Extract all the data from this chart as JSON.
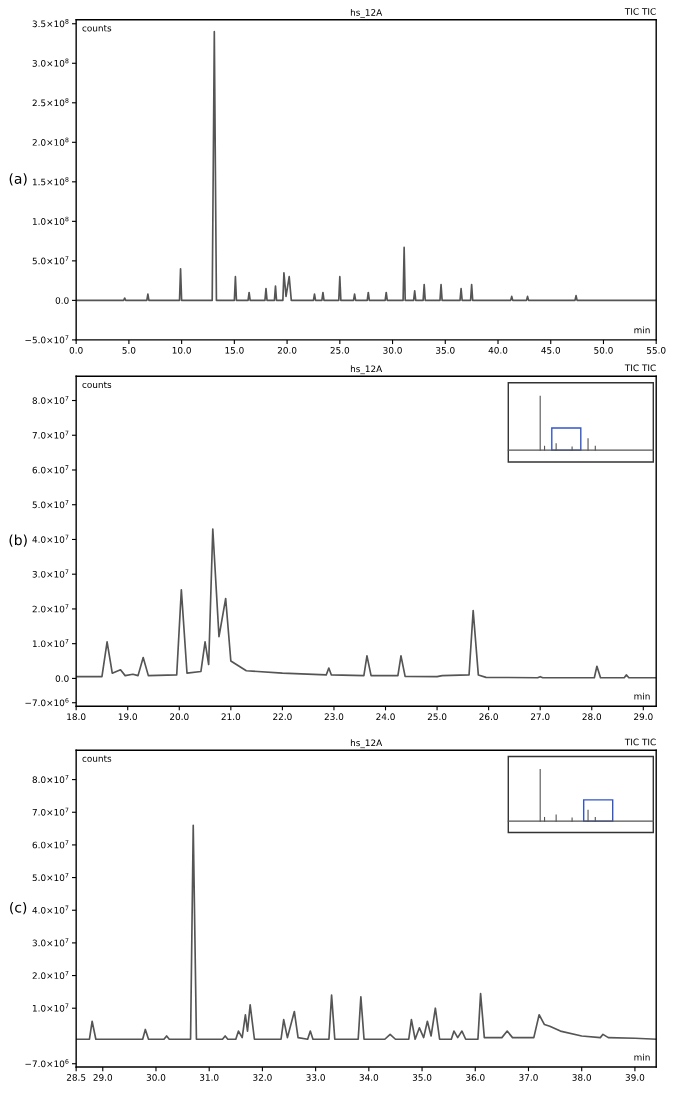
{
  "chart_data": [
    {
      "type": "line",
      "title": "hs_12A",
      "ylabel": "counts",
      "xlabel": "min",
      "annotations": [
        "(a)",
        "TIC TIC"
      ],
      "series": [
        {
          "color": "#555555",
          "x": [
            0,
            4.5,
            4.6,
            4.7,
            6.7,
            6.8,
            6.9,
            9.8,
            9.9,
            10.0,
            12.9,
            13.1,
            13.3,
            15.0,
            15.1,
            15.2,
            16.3,
            16.4,
            16.5,
            17.9,
            18.0,
            18.1,
            18.8,
            18.9,
            19.0,
            19.6,
            19.7,
            19.9,
            20.2,
            20.4,
            22.5,
            22.6,
            22.7,
            23.3,
            23.4,
            23.5,
            24.9,
            25.0,
            25.1,
            26.3,
            26.4,
            26.5,
            27.6,
            27.7,
            27.8,
            29.3,
            29.4,
            29.5,
            31.0,
            31.1,
            31.2,
            32.0,
            32.1,
            32.2,
            32.9,
            33.0,
            33.1,
            34.5,
            34.6,
            34.7,
            36.4,
            36.5,
            36.6,
            37.4,
            37.5,
            37.6,
            41.2,
            41.3,
            41.4,
            42.7,
            42.8,
            42.9,
            47.3,
            47.4,
            47.5,
            55
          ],
          "values": [
            0,
            0,
            3000000,
            0,
            0,
            8000000,
            0,
            0,
            40000000,
            0,
            0,
            340000000,
            0,
            0,
            30000000,
            0,
            0,
            10000000,
            0,
            0,
            15000000,
            0,
            0,
            18000000,
            0,
            0,
            35000000,
            5000000,
            30000000,
            0,
            0,
            8000000,
            0,
            0,
            10000000,
            0,
            0,
            30000000,
            0,
            0,
            8000000,
            0,
            0,
            10000000,
            0,
            0,
            10000000,
            0,
            0,
            67000000,
            0,
            0,
            12000000,
            0,
            0,
            20000000,
            0,
            0,
            20000000,
            0,
            0,
            15000000,
            0,
            0,
            20000000,
            0,
            0,
            5000000,
            0,
            0,
            5000000,
            0,
            0,
            6000000,
            0,
            0
          ]
        }
      ],
      "xlim": [
        0,
        55
      ],
      "ylim": [
        -50000000,
        355000000
      ],
      "xticks": [
        {
          "value": 0,
          "label": "0.0"
        },
        {
          "value": 5,
          "label": "5.0"
        },
        {
          "value": 10,
          "label": "10.0"
        },
        {
          "value": 15,
          "label": "15.0"
        },
        {
          "value": 20,
          "label": "20.0"
        },
        {
          "value": 25,
          "label": "25.0"
        },
        {
          "value": 30,
          "label": "30.0"
        },
        {
          "value": 35,
          "label": "35.0"
        },
        {
          "value": 40,
          "label": "40.0"
        },
        {
          "value": 45,
          "label": "45.0"
        },
        {
          "value": 50,
          "label": "50.0"
        },
        {
          "value": 55,
          "label": "55.0"
        }
      ],
      "yticks": [
        {
          "value": -50000000,
          "label": "−5.0×10$^{7}$"
        },
        {
          "value": 0,
          "label": "0.0"
        },
        {
          "value": 50000000,
          "label": "5.0×10$^{7}$"
        },
        {
          "value": 100000000,
          "label": "1.0×10$^{8}$"
        },
        {
          "value": 150000000,
          "label": "1.5×10$^{8}$"
        },
        {
          "value": 200000000,
          "label": "2.0×10$^{8}$"
        },
        {
          "value": 250000000,
          "label": "2.5×10$^{8}$"
        },
        {
          "value": 300000000,
          "label": "3.0×10$^{8}$"
        },
        {
          "value": 350000000,
          "label": "3.5×10$^{8}$"
        }
      ]
    },
    {
      "type": "line",
      "title": "hs_12A",
      "ylabel": "counts",
      "xlabel": "min",
      "annotations": [
        "(b)",
        "TIC TIC"
      ],
      "series": [
        {
          "color": "#555555",
          "x": [
            18.0,
            18.5,
            18.6,
            18.7,
            18.86,
            18.95,
            19.1,
            19.2,
            19.3,
            19.4,
            19.95,
            20.04,
            20.15,
            20.42,
            20.5,
            20.57,
            20.65,
            20.77,
            20.9,
            21.0,
            21.3,
            22.0,
            22.85,
            22.9,
            22.95,
            23.58,
            23.64,
            23.72,
            24.24,
            24.3,
            24.38,
            25.0,
            25.1,
            25.62,
            25.7,
            25.8,
            25.95,
            26.95,
            27.0,
            27.05,
            28.05,
            28.1,
            28.17,
            28.63,
            28.67,
            28.72,
            29.25
          ],
          "values": [
            500000,
            500000,
            10500000,
            1500000,
            2500000,
            800000,
            1200000,
            800000,
            6000000,
            800000,
            1000000,
            25500000,
            1500000,
            2000000,
            10500000,
            4000000,
            43000000,
            12000000,
            23000000,
            5000000,
            2200000,
            1500000,
            1000000,
            3000000,
            1000000,
            800000,
            6500000,
            800000,
            800000,
            6500000,
            600000,
            500000,
            800000,
            1000000,
            19500000,
            1000000,
            300000,
            200000,
            500000,
            200000,
            200000,
            3500000,
            200000,
            200000,
            1000000,
            200000,
            200000
          ]
        }
      ],
      "xlim": [
        18,
        29.25
      ],
      "ylim": [
        -8000000,
        87000000
      ],
      "xticks": [
        {
          "value": 18,
          "label": "18.0"
        },
        {
          "value": 19,
          "label": "19.0"
        },
        {
          "value": 20,
          "label": "20.0"
        },
        {
          "value": 21,
          "label": "21.0"
        },
        {
          "value": 22,
          "label": "22.0"
        },
        {
          "value": 23,
          "label": "23.0"
        },
        {
          "value": 24,
          "label": "24.0"
        },
        {
          "value": 25,
          "label": "25.0"
        },
        {
          "value": 26,
          "label": "26.0"
        },
        {
          "value": 27,
          "label": "27.0"
        },
        {
          "value": 28,
          "label": "28.0"
        },
        {
          "value": 29,
          "label": "29.0"
        }
      ],
      "yticks": [
        {
          "value": -7000000,
          "label": "−7.0×10$^{6}$"
        },
        {
          "value": 0,
          "label": "0.0"
        },
        {
          "value": 10000000,
          "label": "1.0×10$^{7}$"
        },
        {
          "value": 20000000,
          "label": "2.0×10$^{7}$"
        },
        {
          "value": 30000000,
          "label": "3.0×10$^{7}$"
        },
        {
          "value": 40000000,
          "label": "4.0×10$^{7}$"
        },
        {
          "value": 50000000,
          "label": "5.0×10$^{7}$"
        },
        {
          "value": 60000000,
          "label": "6.0×10$^{7}$"
        },
        {
          "value": 70000000,
          "label": "7.0×10$^{7}$"
        },
        {
          "value": 80000000,
          "label": "8.0×10$^{7}$"
        }
      ]
    },
    {
      "type": "line",
      "title": "hs_12A",
      "ylabel": "counts",
      "xlabel": "min",
      "annotations": [
        "(c)",
        "TIC TIC"
      ],
      "series": [
        {
          "color": "#555555",
          "x": [
            28.5,
            28.75,
            28.8,
            28.87,
            29.75,
            29.8,
            29.86,
            30.15,
            30.2,
            30.25,
            30.65,
            30.7,
            30.76,
            31.25,
            31.3,
            31.35,
            31.5,
            31.55,
            31.62,
            31.68,
            31.72,
            31.77,
            31.85,
            32.35,
            32.4,
            32.47,
            32.6,
            32.67,
            32.85,
            32.9,
            32.95,
            33.25,
            33.3,
            33.36,
            33.8,
            33.85,
            33.91,
            34.3,
            34.4,
            34.5,
            34.75,
            34.8,
            34.87,
            34.95,
            35.03,
            35.1,
            35.17,
            35.25,
            35.33,
            35.55,
            35.6,
            35.67,
            35.75,
            35.82,
            36.05,
            36.1,
            36.17,
            36.5,
            36.6,
            36.7,
            37.1,
            37.2,
            37.3,
            37.4,
            37.6,
            38.0,
            38.35,
            38.4,
            38.5,
            39.0,
            39.4
          ],
          "values": [
            500000,
            500000,
            6000000,
            500000,
            500000,
            3500000,
            500000,
            500000,
            1500000,
            500000,
            500000,
            66000000,
            500000,
            500000,
            1500000,
            500000,
            500000,
            3000000,
            1000000,
            8000000,
            3000000,
            11000000,
            500000,
            500000,
            6500000,
            1000000,
            9000000,
            1000000,
            500000,
            3000000,
            500000,
            500000,
            14000000,
            500000,
            500000,
            13500000,
            500000,
            500000,
            2000000,
            500000,
            500000,
            6500000,
            500000,
            4000000,
            1000000,
            6000000,
            1500000,
            10000000,
            500000,
            500000,
            3000000,
            1000000,
            3000000,
            500000,
            500000,
            14500000,
            1000000,
            1000000,
            3000000,
            1000000,
            1000000,
            8000000,
            5000000,
            4500000,
            3000000,
            1500000,
            1000000,
            2000000,
            1000000,
            800000,
            500000
          ]
        }
      ],
      "xlim": [
        28.5,
        39.4
      ],
      "ylim": [
        -8000000,
        89000000
      ],
      "xticks": [
        {
          "value": 28.5,
          "label": "28.5"
        },
        {
          "value": 29,
          "label": "29.0"
        },
        {
          "value": 30,
          "label": "30.0"
        },
        {
          "value": 31,
          "label": "31.0"
        },
        {
          "value": 32,
          "label": "32.0"
        },
        {
          "value": 33,
          "label": "33.0"
        },
        {
          "value": 34,
          "label": "34.0"
        },
        {
          "value": 35,
          "label": "35.0"
        },
        {
          "value": 36,
          "label": "36.0"
        },
        {
          "value": 37,
          "label": "37.0"
        },
        {
          "value": 38,
          "label": "38.0"
        },
        {
          "value": 39,
          "label": "39.0"
        }
      ],
      "yticks": [
        {
          "value": -7000000,
          "label": "−7.0×10$^{6}$"
        },
        {
          "value": 10000000,
          "label": "1.0×10$^{7}$"
        },
        {
          "value": 20000000,
          "label": "2.0×10$^{7}$"
        },
        {
          "value": 30000000,
          "label": "3.0×10$^{7}$"
        },
        {
          "value": 40000000,
          "label": "4.0×10$^{7}$"
        },
        {
          "value": 50000000,
          "label": "5.0×10$^{7}$"
        },
        {
          "value": 60000000,
          "label": "6.0×10$^{7}$"
        },
        {
          "value": 70000000,
          "label": "7.0×10$^{7}$"
        },
        {
          "value": 80000000,
          "label": "8.0×10$^{7}$"
        }
      ]
    }
  ]
}
